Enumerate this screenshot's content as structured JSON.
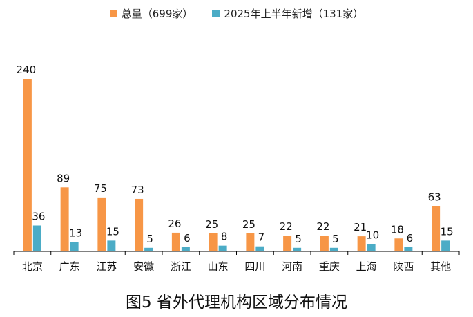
{
  "caption": "图5 省外代理机构区域分布情况",
  "colors": {
    "total": "#F79646",
    "new": "#4BACC6",
    "axis": "#000000"
  },
  "chart_data": {
    "type": "bar",
    "title": "",
    "xlabel": "",
    "ylabel": "",
    "ylim": [
      0,
      240
    ],
    "legend_position": "top",
    "grid": false,
    "categories": [
      "北京",
      "广东",
      "江苏",
      "安徽",
      "浙江",
      "山东",
      "四川",
      "河南",
      "重庆",
      "上海",
      "陕西",
      "其他"
    ],
    "series": [
      {
        "name": "总量（699家）",
        "values": [
          240,
          89,
          75,
          73,
          26,
          25,
          25,
          22,
          22,
          21,
          18,
          63
        ]
      },
      {
        "name": "2025年上半年新增（131家）",
        "values": [
          36,
          13,
          15,
          5,
          6,
          8,
          7,
          5,
          5,
          10,
          6,
          15
        ]
      }
    ]
  }
}
